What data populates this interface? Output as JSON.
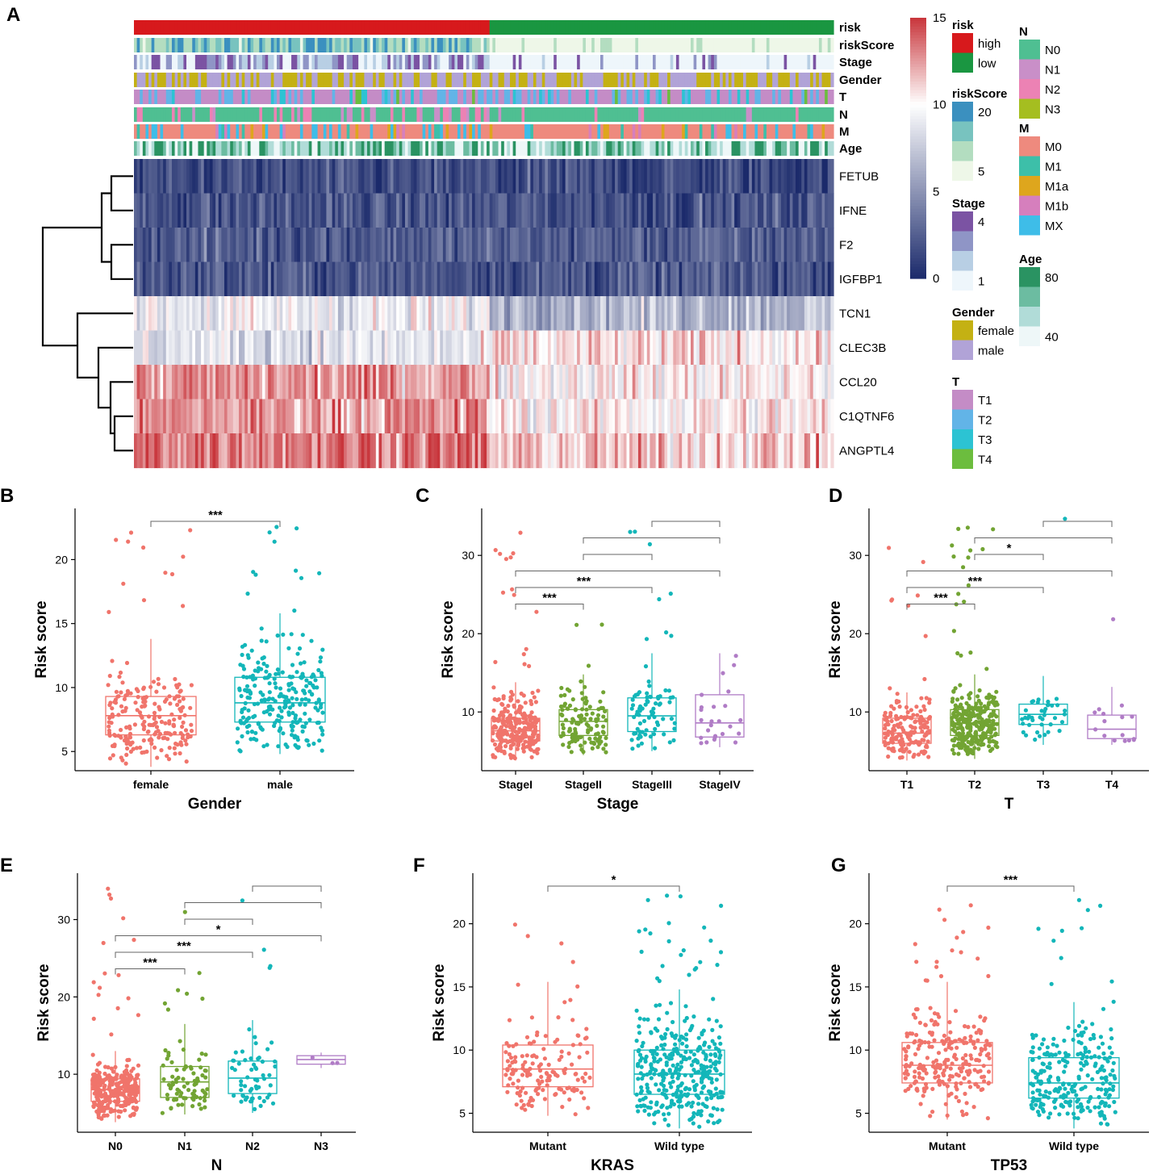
{
  "panel_letters": [
    "A",
    "B",
    "C",
    "D",
    "E",
    "F",
    "G"
  ],
  "colors": {
    "risk_high": "#d7191c",
    "risk_low": "#1a9641",
    "heat_low": "#1b2a6b",
    "heat_mid": "#ffffff",
    "heat_high": "#c8353b",
    "box_1": "#f0746b",
    "box_2": "#72a433",
    "box_3": "#13b6b9",
    "box_4": "#b07cc6"
  },
  "heatmap": {
    "annotation_rows": [
      "risk",
      "riskScore",
      "Stage",
      "Gender",
      "T",
      "N",
      "M",
      "Age"
    ],
    "genes": [
      "FETUB",
      "IFNE",
      "F2",
      "IGFBP1",
      "TCN1",
      "CLEC3B",
      "CCL20",
      "C1QTNF6",
      "ANGPTL4"
    ],
    "gene_means": [
      1.5,
      2.0,
      2.5,
      2.2,
      8.5,
      10.0,
      11.5,
      11.5,
      12.5
    ],
    "colorbar_ticks": [
      "15",
      "10",
      "5",
      "0"
    ],
    "colorbar_tick_values": [
      15,
      10,
      5,
      0
    ],
    "legends": [
      {
        "title": "risk",
        "entries": [
          {
            "label": "high",
            "color": "#d7191c"
          },
          {
            "label": "low",
            "color": "#1a9641"
          }
        ]
      },
      {
        "title": "riskScore",
        "entries": [
          {
            "label": "20",
            "color": "#3b90bf"
          },
          {
            "label": "",
            "color": "#78c3bf"
          },
          {
            "label": "",
            "color": "#b3ddc0"
          },
          {
            "label": "5",
            "color": "#eef7e8"
          }
        ]
      },
      {
        "title": "Stage",
        "entries": [
          {
            "label": "4",
            "color": "#7b53a3"
          },
          {
            "label": "",
            "color": "#8f95c6"
          },
          {
            "label": "",
            "color": "#b8cfe4"
          },
          {
            "label": "1",
            "color": "#eef6fb"
          }
        ]
      },
      {
        "title": "Gender",
        "entries": [
          {
            "label": "female",
            "color": "#c4b113"
          },
          {
            "label": "male",
            "color": "#b1a3d7"
          }
        ]
      },
      {
        "title": "T",
        "entries": [
          {
            "label": "T1",
            "color": "#c48cc6"
          },
          {
            "label": "T2",
            "color": "#62b4e7"
          },
          {
            "label": "T3",
            "color": "#2cc3d3"
          },
          {
            "label": "T4",
            "color": "#6cbd3e"
          }
        ]
      },
      {
        "title": "N",
        "entries": [
          {
            "label": "N0",
            "color": "#4fbf92"
          },
          {
            "label": "N1",
            "color": "#c98fc8"
          },
          {
            "label": "N2",
            "color": "#ec82b4"
          },
          {
            "label": "N3",
            "color": "#a5be20"
          }
        ]
      },
      {
        "title": "M",
        "entries": [
          {
            "label": "M0",
            "color": "#ee8a7e"
          },
          {
            "label": "M1",
            "color": "#3dbfa9"
          },
          {
            "label": "M1a",
            "color": "#dea61d"
          },
          {
            "label": "M1b",
            "color": "#d67fbd"
          },
          {
            "label": "MX",
            "color": "#3ebde8"
          }
        ]
      },
      {
        "title": "Age",
        "entries": [
          {
            "label": "80",
            "color": "#2a9362"
          },
          {
            "label": "",
            "color": "#6cbca1"
          },
          {
            "label": "",
            "color": "#b1dcd8"
          },
          {
            "label": "40",
            "color": "#eef7f8"
          }
        ]
      }
    ]
  },
  "chart_data": [
    {
      "id": "B",
      "type": "box",
      "title": "",
      "xlabel": "Gender",
      "ylabel": "Risk score",
      "ylim": [
        3.5,
        24
      ],
      "yticks": [
        5,
        10,
        15,
        20
      ],
      "categories": [
        "female",
        "male"
      ],
      "boxes": [
        {
          "q1": 6.3,
          "median": 7.8,
          "q3": 9.3,
          "lo": 3.8,
          "hi": 13.8,
          "n": 210
        },
        {
          "q1": 7.3,
          "median": 8.8,
          "q3": 10.8,
          "lo": 4.8,
          "hi": 15.8,
          "n": 260
        }
      ],
      "comparisons": [
        {
          "a": 0,
          "b": 1,
          "label": "***"
        }
      ]
    },
    {
      "id": "C",
      "type": "box",
      "title": "",
      "xlabel": "Stage",
      "ylabel": "Risk score",
      "ylim": [
        2.5,
        36
      ],
      "yticks": [
        10,
        20,
        30
      ],
      "categories": [
        "StageI",
        "StageII",
        "StageIII",
        "StageIV"
      ],
      "boxes": [
        {
          "q1": 6.3,
          "median": 7.6,
          "q3": 9.2,
          "lo": 3.8,
          "hi": 13.8,
          "n": 260
        },
        {
          "q1": 7.0,
          "median": 8.8,
          "q3": 10.3,
          "lo": 4.5,
          "hi": 14.8,
          "n": 120
        },
        {
          "q1": 7.5,
          "median": 9.5,
          "q3": 11.8,
          "lo": 5.0,
          "hi": 17.5,
          "n": 80
        },
        {
          "q1": 6.8,
          "median": 8.6,
          "q3": 12.2,
          "lo": 5.5,
          "hi": 17.5,
          "n": 25
        }
      ],
      "comparisons": [
        {
          "a": 0,
          "b": 1,
          "label": "***"
        },
        {
          "a": 0,
          "b": 2,
          "label": "***"
        },
        {
          "a": 0,
          "b": 3,
          "label": ""
        },
        {
          "a": 1,
          "b": 2,
          "label": ""
        },
        {
          "a": 1,
          "b": 3,
          "label": ""
        },
        {
          "a": 2,
          "b": 3,
          "label": ""
        }
      ]
    },
    {
      "id": "D",
      "type": "box",
      "title": "",
      "xlabel": "T",
      "ylabel": "Risk score",
      "ylim": [
        2.5,
        36
      ],
      "yticks": [
        10,
        20,
        30
      ],
      "categories": [
        "T1",
        "T2",
        "T3",
        "T4"
      ],
      "boxes": [
        {
          "q1": 6.0,
          "median": 7.3,
          "q3": 9.2,
          "lo": 3.8,
          "hi": 12.5,
          "n": 170
        },
        {
          "q1": 7.0,
          "median": 8.6,
          "q3": 10.3,
          "lo": 4.0,
          "hi": 14.8,
          "n": 280
        },
        {
          "q1": 8.4,
          "median": 9.7,
          "q3": 11.0,
          "lo": 5.8,
          "hi": 14.6,
          "n": 40
        },
        {
          "q1": 6.6,
          "median": 7.8,
          "q3": 9.6,
          "lo": 5.8,
          "hi": 13.2,
          "n": 16
        }
      ],
      "comparisons": [
        {
          "a": 0,
          "b": 1,
          "label": "***"
        },
        {
          "a": 0,
          "b": 2,
          "label": "***"
        },
        {
          "a": 0,
          "b": 3,
          "label": ""
        },
        {
          "a": 1,
          "b": 2,
          "label": "*"
        },
        {
          "a": 1,
          "b": 3,
          "label": ""
        },
        {
          "a": 2,
          "b": 3,
          "label": ""
        }
      ]
    },
    {
      "id": "E",
      "type": "box",
      "title": "",
      "xlabel": "N",
      "ylabel": "Risk score",
      "ylim": [
        2.5,
        36
      ],
      "yticks": [
        10,
        20,
        30
      ],
      "categories": [
        "N0",
        "N1",
        "N2",
        "N3"
      ],
      "boxes": [
        {
          "q1": 6.5,
          "median": 8.0,
          "q3": 9.4,
          "lo": 3.8,
          "hi": 13.0,
          "n": 320
        },
        {
          "q1": 7.0,
          "median": 9.0,
          "q3": 11.0,
          "lo": 4.8,
          "hi": 16.5,
          "n": 85
        },
        {
          "q1": 7.5,
          "median": 9.5,
          "q3": 11.7,
          "lo": 5.0,
          "hi": 17.0,
          "n": 60
        },
        {
          "q1": 11.3,
          "median": 11.9,
          "q3": 12.4,
          "lo": 10.8,
          "hi": 12.8,
          "n": 3
        }
      ],
      "comparisons": [
        {
          "a": 0,
          "b": 1,
          "label": "***"
        },
        {
          "a": 0,
          "b": 2,
          "label": "***"
        },
        {
          "a": 0,
          "b": 3,
          "label": "*"
        },
        {
          "a": 1,
          "b": 2,
          "label": ""
        },
        {
          "a": 1,
          "b": 3,
          "label": ""
        },
        {
          "a": 2,
          "b": 3,
          "label": ""
        }
      ]
    },
    {
      "id": "F",
      "type": "box",
      "title": "",
      "xlabel": "KRAS",
      "ylabel": "Risk score",
      "ylim": [
        3.5,
        24
      ],
      "yticks": [
        5,
        10,
        15,
        20
      ],
      "categories": [
        "Mutant",
        "Wild type"
      ],
      "boxes": [
        {
          "q1": 7.1,
          "median": 8.5,
          "q3": 10.4,
          "lo": 4.8,
          "hi": 15.4,
          "n": 150
        },
        {
          "q1": 6.5,
          "median": 8.1,
          "q3": 10.0,
          "lo": 3.8,
          "hi": 14.8,
          "n": 360
        }
      ],
      "comparisons": [
        {
          "a": 0,
          "b": 1,
          "label": "*"
        }
      ]
    },
    {
      "id": "G",
      "type": "box",
      "title": "",
      "xlabel": "TP53",
      "ylabel": "Risk score",
      "ylim": [
        3.5,
        24
      ],
      "yticks": [
        5,
        10,
        15,
        20
      ],
      "categories": [
        "Mutant",
        "Wild type"
      ],
      "boxes": [
        {
          "q1": 7.4,
          "median": 8.8,
          "q3": 10.6,
          "lo": 4.5,
          "hi": 15.4,
          "n": 250
        },
        {
          "q1": 6.2,
          "median": 7.4,
          "q3": 9.4,
          "lo": 3.8,
          "hi": 13.8,
          "n": 250
        }
      ],
      "comparisons": [
        {
          "a": 0,
          "b": 1,
          "label": "***"
        }
      ]
    }
  ]
}
